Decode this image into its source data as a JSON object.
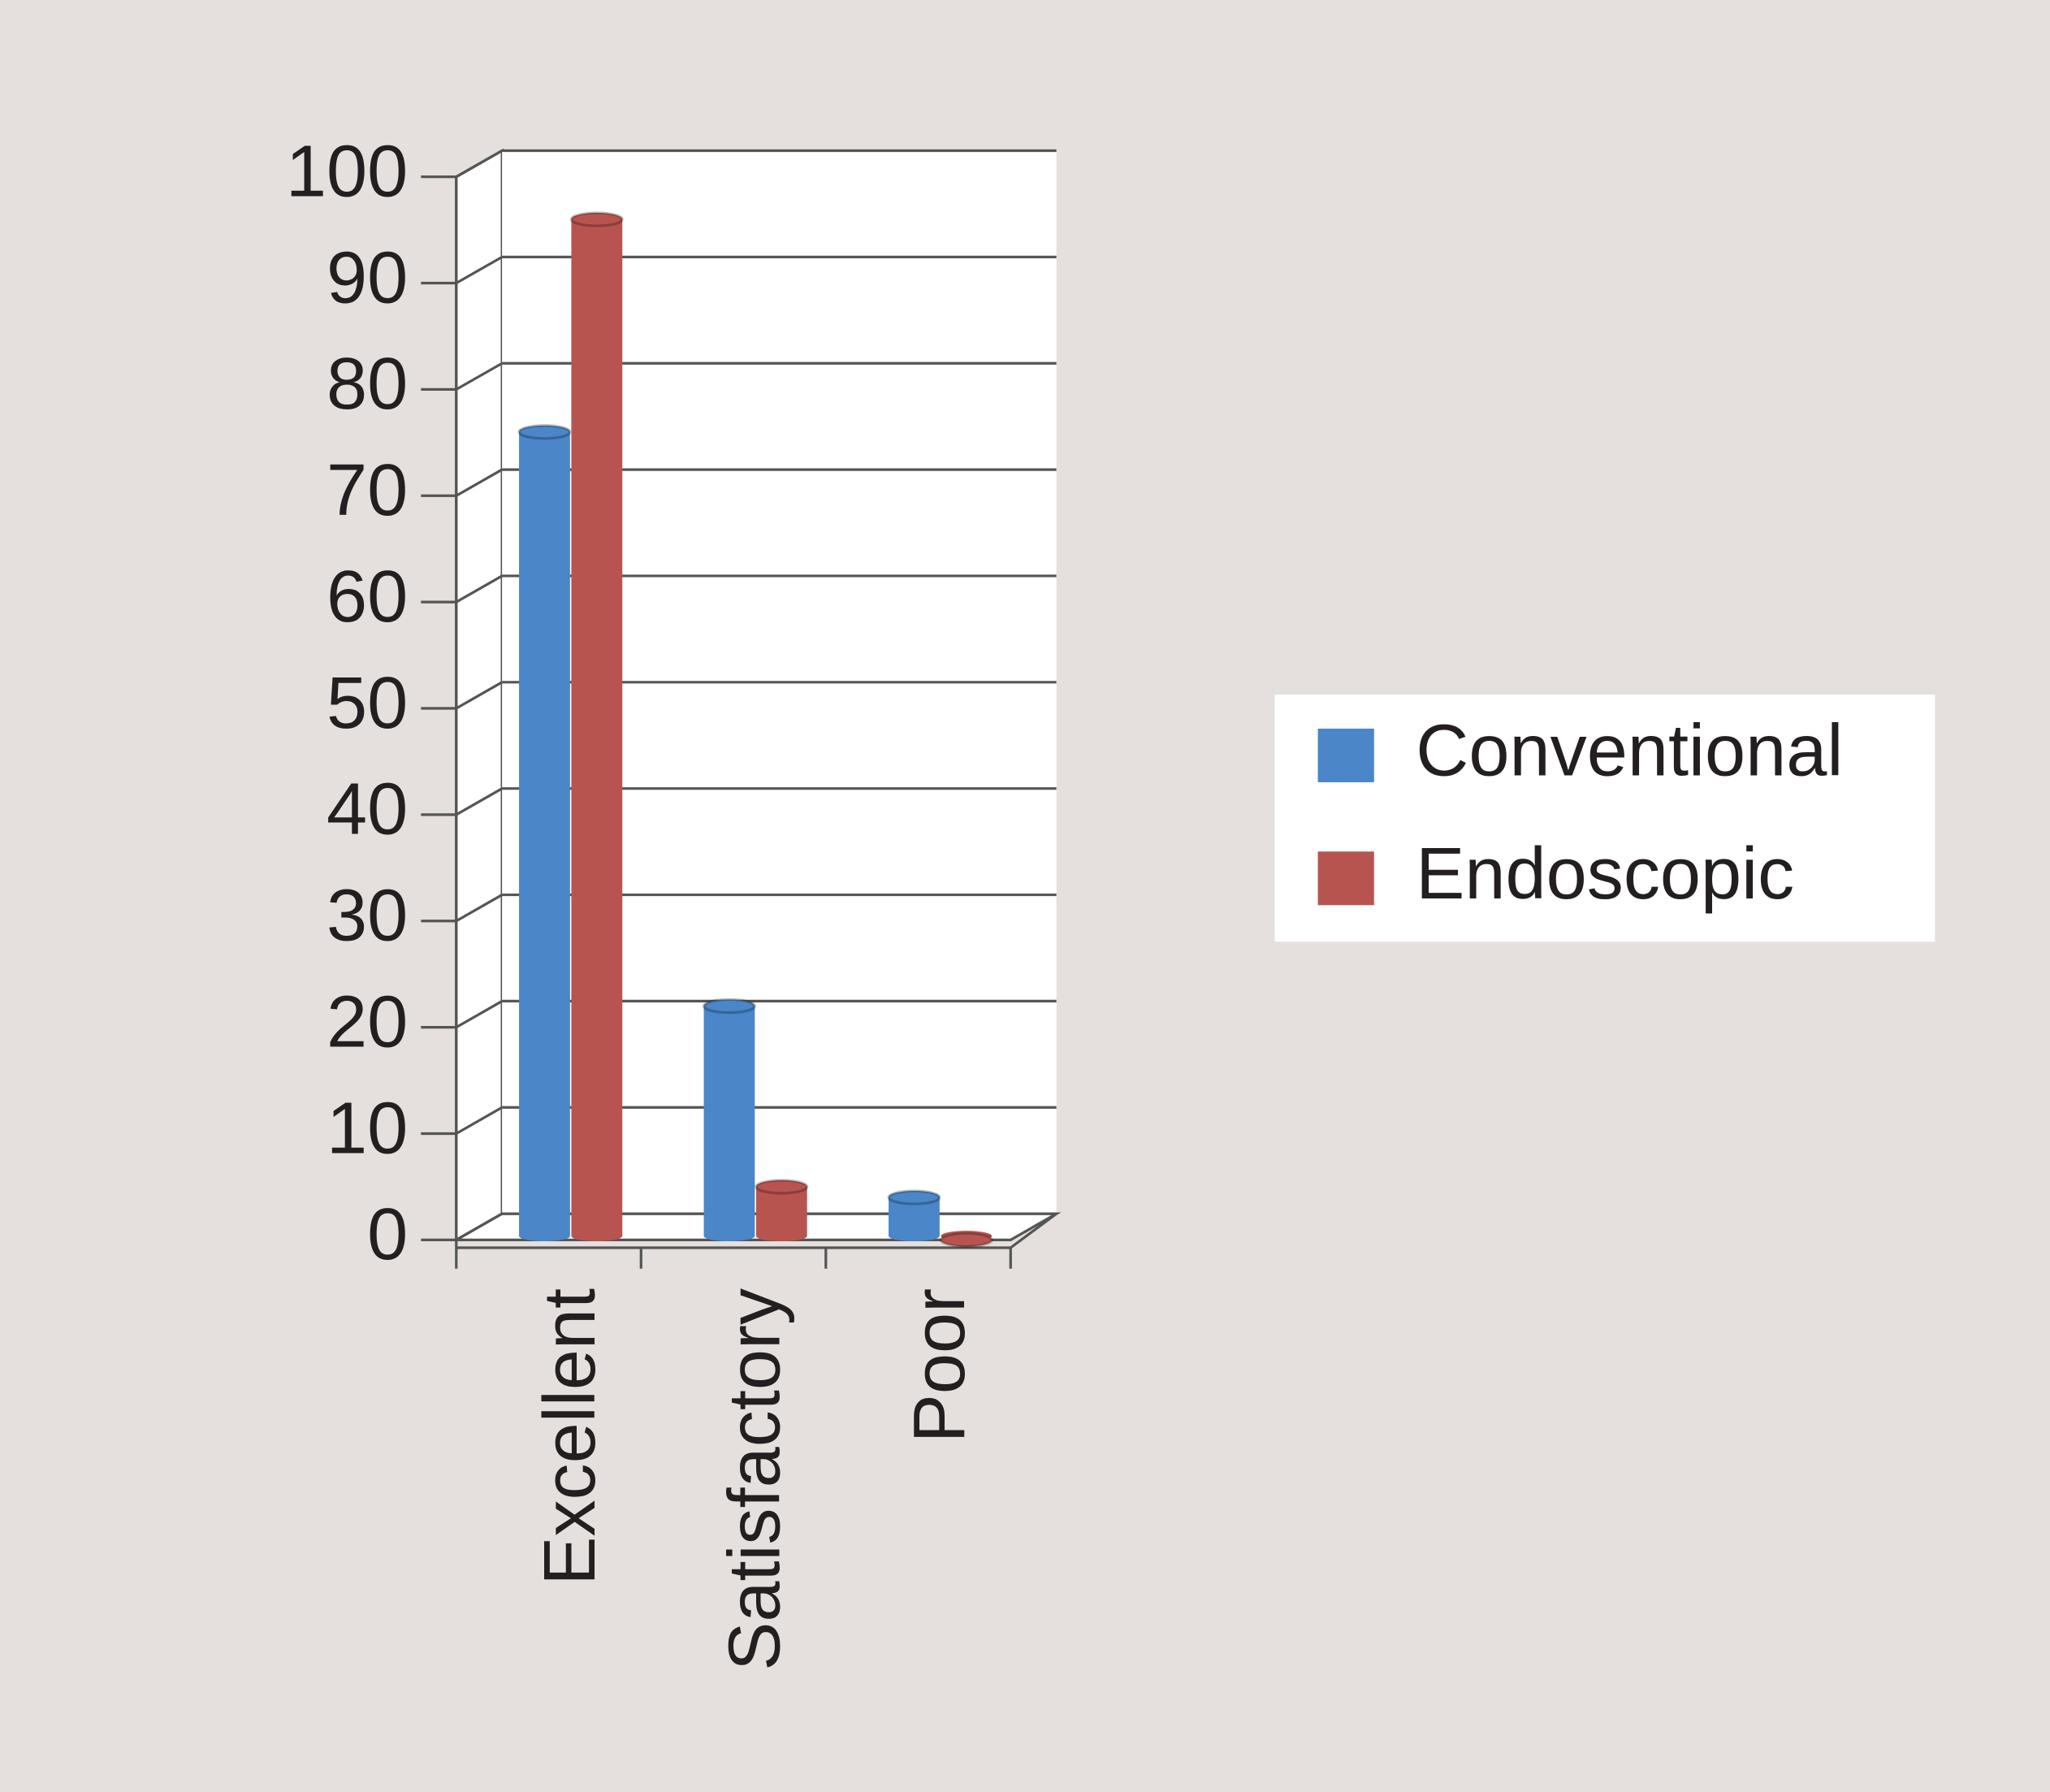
{
  "chart_data": {
    "type": "bar",
    "categories": [
      "Excellent",
      "Satisfactory",
      "Poor"
    ],
    "series": [
      {
        "name": "Conventional",
        "color": "#4a86c8",
        "values": [
          76,
          22,
          4
        ]
      },
      {
        "name": "Endoscopic",
        "color": "#b85450",
        "values": [
          96,
          5,
          0
        ]
      }
    ],
    "ylim": [
      0,
      100
    ],
    "yticks": [
      0,
      10,
      20,
      30,
      40,
      50,
      60,
      70,
      80,
      90,
      100
    ],
    "grid": true
  }
}
